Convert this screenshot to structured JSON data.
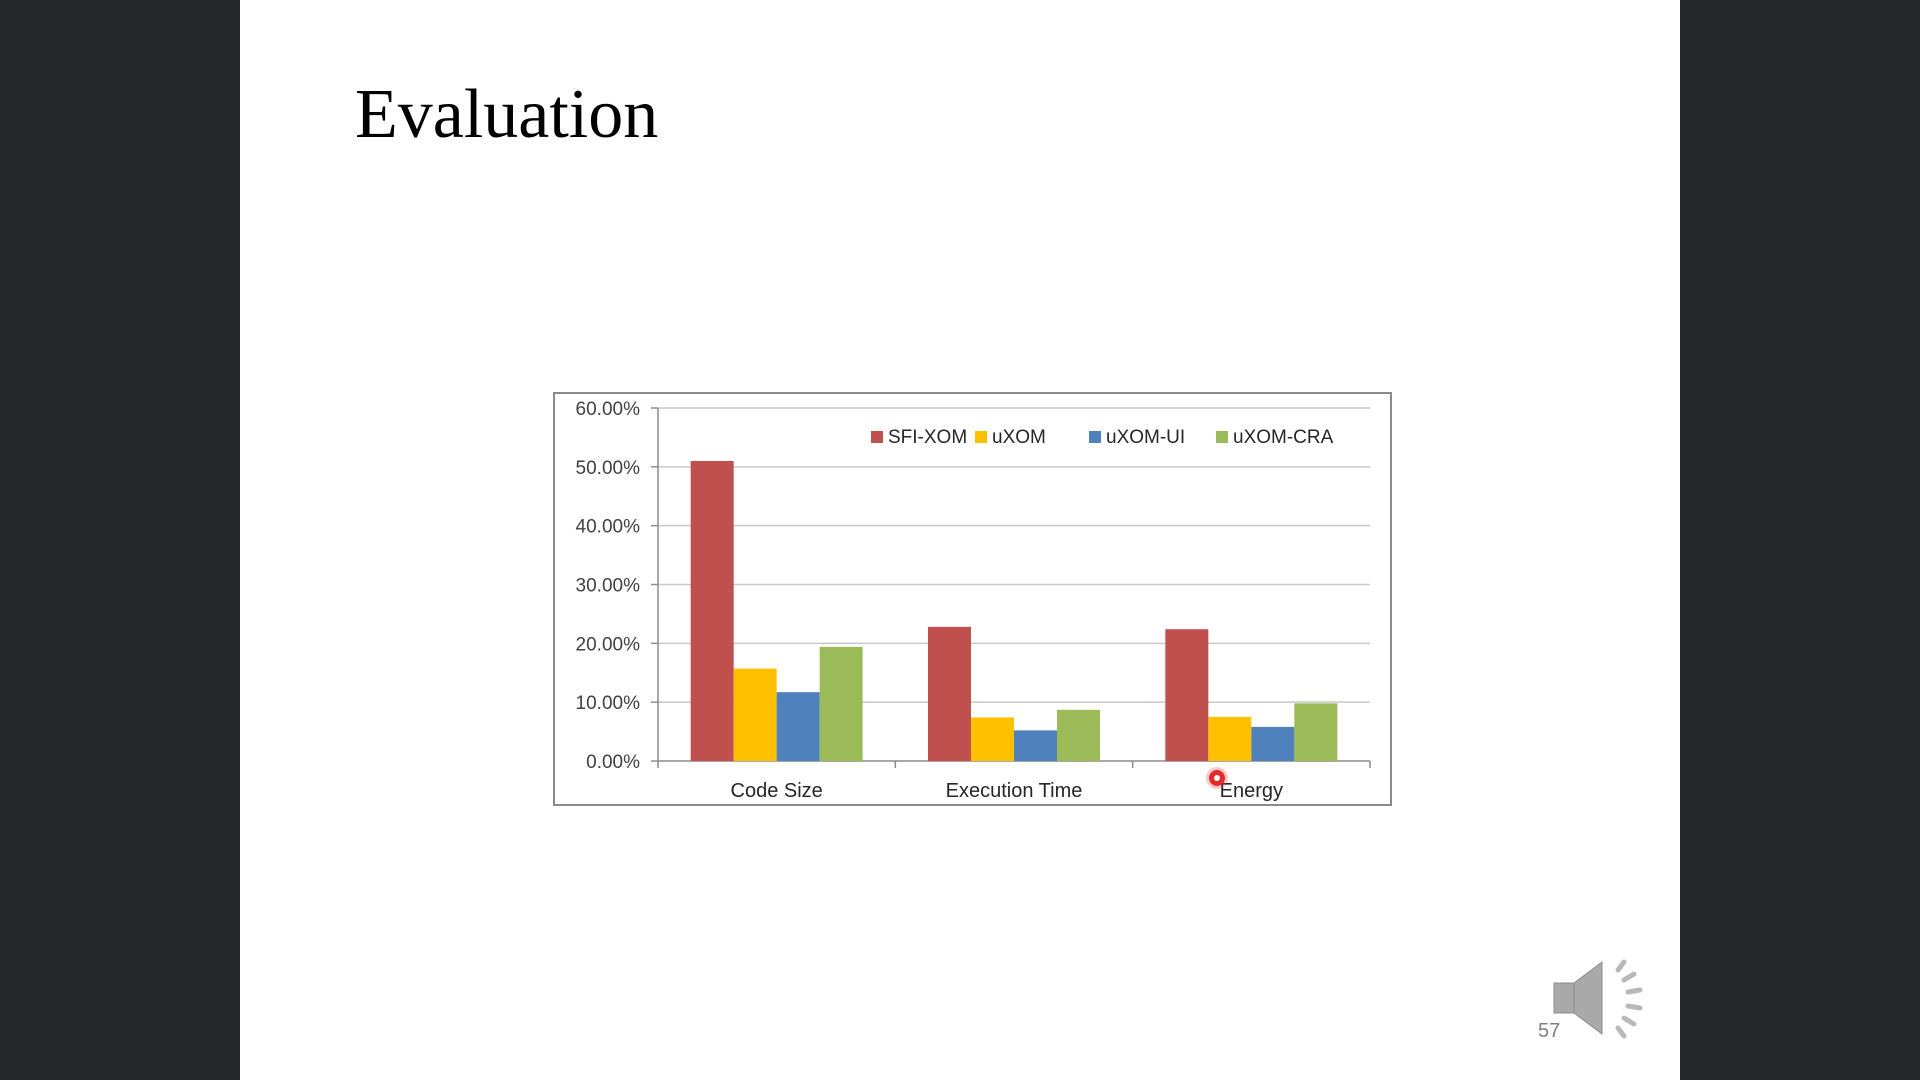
{
  "slide": {
    "title": "Evaluation",
    "page_number": "57"
  },
  "icons": {
    "speaker": "speaker-icon",
    "pointer": "laser-pointer-icon"
  },
  "chart_data": {
    "type": "bar",
    "categories": [
      "Code Size",
      "Execution Time",
      "Energy"
    ],
    "series": [
      {
        "name": "SFI-XOM",
        "color": "#c0504d",
        "values": [
          51.0,
          22.8,
          22.4
        ]
      },
      {
        "name": "uXOM",
        "color": "#ffc000",
        "values": [
          15.7,
          7.4,
          7.5
        ]
      },
      {
        "name": "uXOM-UI",
        "color": "#4f81bd",
        "values": [
          11.7,
          5.2,
          5.8
        ]
      },
      {
        "name": "uXOM-CRA",
        "color": "#9bbb59",
        "values": [
          19.4,
          8.7,
          9.8
        ]
      }
    ],
    "y_ticks": [
      "60.00%",
      "50.00%",
      "40.00%",
      "30.00%",
      "20.00%",
      "10.00%",
      "0.00%"
    ],
    "ylim": [
      0,
      60
    ],
    "grid": true,
    "legend_position": "top-right"
  }
}
